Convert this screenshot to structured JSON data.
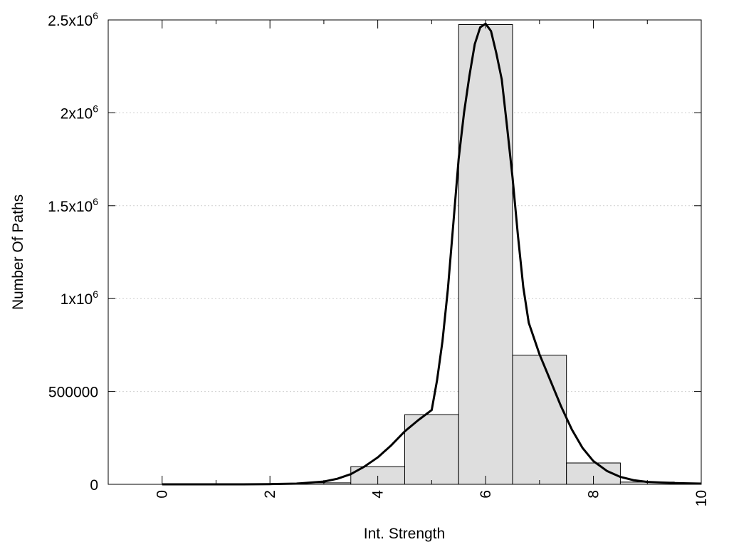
{
  "chart_data": {
    "type": "bar",
    "subtype": "histogram-with-fitted-curve",
    "title": "",
    "xlabel": "Int. Strength",
    "ylabel": "Number Of Paths",
    "xlim": [
      -1,
      10
    ],
    "ylim": [
      0,
      2500000
    ],
    "grid": {
      "y": true,
      "x": false
    },
    "x_ticks": [
      {
        "value": 0,
        "label": "0"
      },
      {
        "value": 2,
        "label": "2"
      },
      {
        "value": 4,
        "label": "4"
      },
      {
        "value": 6,
        "label": "6"
      },
      {
        "value": 8,
        "label": "8"
      },
      {
        "value": 10,
        "label": "10"
      }
    ],
    "y_ticks": [
      {
        "value": 0,
        "base": "0",
        "exp": ""
      },
      {
        "value": 500000,
        "base": "500000",
        "exp": ""
      },
      {
        "value": 1000000,
        "base": "1x10",
        "exp": "6"
      },
      {
        "value": 1500000,
        "base": "1.5x10",
        "exp": "6"
      },
      {
        "value": 2000000,
        "base": "2x10",
        "exp": "6"
      },
      {
        "value": 2500000,
        "base": "2.5x10",
        "exp": "6"
      }
    ],
    "bars": {
      "bin_width": 1,
      "color": "#dedede",
      "edge_color": "#000000",
      "centers": [
        0,
        1,
        2,
        3,
        4,
        5,
        6,
        7,
        8,
        9,
        10
      ],
      "values": [
        0,
        0,
        2000,
        8000,
        95000,
        375000,
        2475000,
        695000,
        115000,
        12000,
        3000
      ]
    },
    "curve": {
      "color": "#000000",
      "x": [
        0,
        0.5,
        1,
        1.5,
        2,
        2.5,
        3,
        3.25,
        3.5,
        3.75,
        4,
        4.25,
        4.5,
        4.75,
        5,
        5.1,
        5.2,
        5.3,
        5.4,
        5.5,
        5.6,
        5.7,
        5.8,
        5.9,
        6,
        6.1,
        6.2,
        6.3,
        6.4,
        6.5,
        6.6,
        6.7,
        6.8,
        7,
        7.2,
        7.4,
        7.6,
        7.8,
        8,
        8.25,
        8.5,
        8.75,
        9,
        9.5,
        10
      ],
      "y": [
        0,
        0,
        0,
        0,
        1000,
        4000,
        15000,
        30000,
        55000,
        95000,
        145000,
        210000,
        285000,
        345000,
        400000,
        560000,
        770000,
        1050000,
        1400000,
        1750000,
        2000000,
        2200000,
        2370000,
        2460000,
        2480000,
        2440000,
        2320000,
        2180000,
        1920000,
        1650000,
        1340000,
        1060000,
        870000,
        700000,
        560000,
        420000,
        295000,
        195000,
        125000,
        72000,
        40000,
        22000,
        13000,
        7000,
        4000
      ]
    }
  }
}
